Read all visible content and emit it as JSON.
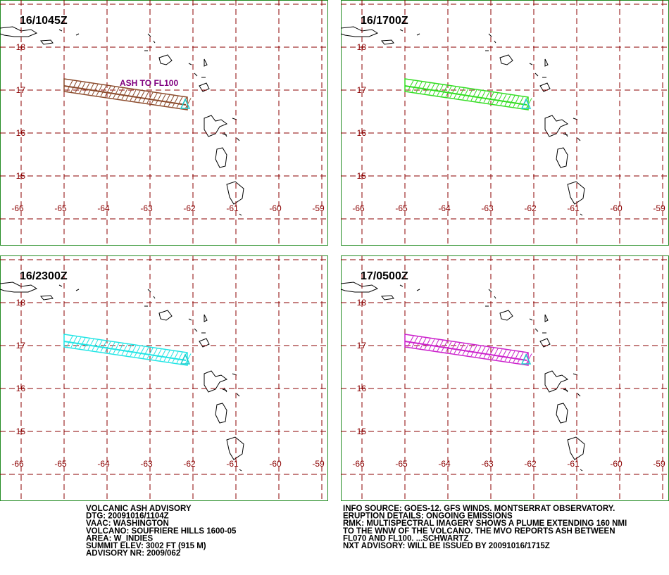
{
  "panels": [
    {
      "time": "16/1045Z",
      "plume_color": "#8b4a2b",
      "annotation": "ASH TO FL100"
    },
    {
      "time": "16/1700Z",
      "plume_color": "#33dd22"
    },
    {
      "time": "16/2300Z",
      "plume_color": "#22e5e5"
    },
    {
      "time": "17/0500Z",
      "plume_color": "#cc22cc"
    }
  ],
  "map": {
    "lat_labels": [
      18,
      17,
      16,
      15
    ],
    "lon_labels": [
      -66,
      -65,
      -64,
      -63,
      -62,
      -61,
      -60,
      -59
    ],
    "grid_color": "#8b0000",
    "border_color": "#228b22"
  },
  "advisory": {
    "left": [
      "VOLCANIC ASH ADVISORY",
      "DTG: 20091016/1104Z",
      "VAAC: WASHINGTON",
      "VOLCANO: SOUFRIERE HILLS 1600-05",
      "AREA: W_INDIES",
      "SUMMIT ELEV: 3002 FT (915 M)",
      "ADVISORY NR: 2009/062"
    ],
    "right": [
      "INFO SOURCE: GOES-12. GFS WINDS. MONTSERRAT OBSERVATORY.",
      "ERUPTION DETAILS: ONGOING EMISSIONS",
      "RMK: MULTISPECTRAL IMAGERY SHOWS A PLUME EXTENDING 160 NMI",
      "TO THE WNW OF THE VOLCANO. THE MVO REPORTS ASH BETWEEN",
      "FL070 AND FL100. ...SCHWARTZ",
      "NXT ADVISORY: WILL BE ISSUED BY 20091016/1715Z"
    ]
  }
}
